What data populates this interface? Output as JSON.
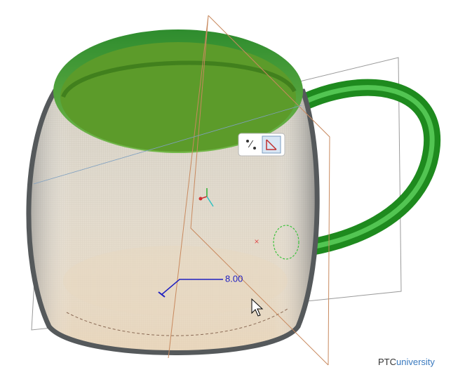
{
  "dimension": {
    "label": "8.00"
  },
  "logo": {
    "brand": "PTC",
    "suffix": "university"
  }
}
